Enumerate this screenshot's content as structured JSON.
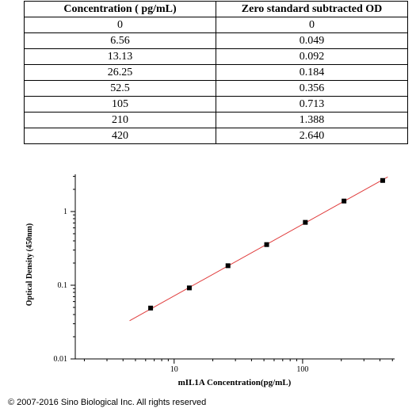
{
  "table": {
    "headers": [
      "Concentration ( pg/mL)",
      "Zero standard subtracted OD"
    ],
    "rows": [
      [
        "0",
        "0"
      ],
      [
        "6.56",
        "0.049"
      ],
      [
        "13.13",
        "0.092"
      ],
      [
        "26.25",
        "0.184"
      ],
      [
        "52.5",
        "0.356"
      ],
      [
        "105",
        "0.713"
      ],
      [
        "210",
        "1.388"
      ],
      [
        "420",
        "2.640"
      ]
    ]
  },
  "chart_data": {
    "type": "scatter",
    "xlabel": "mIL1A  Concentration(pg/mL)",
    "ylabel": "Optical Density (450nm)",
    "x_scale": "log",
    "y_scale": "log",
    "xlim": [
      1.7,
      520
    ],
    "ylim": [
      0.01,
      3.2
    ],
    "x_ticks": [
      10,
      100
    ],
    "x_tick_labels": [
      "10",
      "100"
    ],
    "y_ticks": [
      0.01,
      0.1,
      1
    ],
    "y_tick_labels": [
      "0.01",
      "0.1",
      "1"
    ],
    "points": {
      "x": [
        6.56,
        13.13,
        26.25,
        52.5,
        105,
        210,
        420
      ],
      "y": [
        0.049,
        0.092,
        0.184,
        0.356,
        0.713,
        1.388,
        2.64
      ]
    },
    "fit_line": {
      "color": "#e03c3c",
      "x": [
        4.5,
        460
      ],
      "y": [
        0.033,
        2.95
      ]
    },
    "marker_color": "#000000",
    "grid": false
  },
  "footer": {
    "copyright": "© 2007-2016 Sino Biological Inc. All rights reserved"
  }
}
